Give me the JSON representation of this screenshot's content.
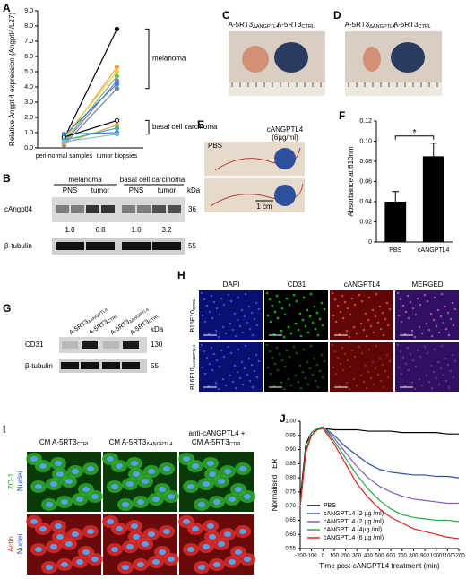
{
  "letters": [
    "A",
    "B",
    "C",
    "D",
    "E",
    "F",
    "G",
    "H",
    "I",
    "J"
  ],
  "B": {
    "groups": [
      "melanoma",
      "basal cell carcinoma"
    ],
    "lanes": [
      "PNS",
      "tumor",
      "PNS",
      "tumor"
    ],
    "unit": "kDa",
    "rows": [
      "cAngptl4",
      "β-tubulin"
    ],
    "markers": [
      "36",
      "55"
    ],
    "ratios": [
      "1.0",
      "6.8",
      "1.0",
      "3.2"
    ]
  },
  "C": {
    "labels": [
      {
        "base": "A-5RT3",
        "sub": "ΔANGPTL4"
      },
      {
        "base": "A-5RT3",
        "sub": "CTRL"
      }
    ]
  },
  "D": {
    "labels": [
      {
        "base": "A-5RT3",
        "sub": "ΔANGPTL4"
      },
      {
        "base": "A-5RT3",
        "sub": "CTRL"
      }
    ]
  },
  "E": {
    "left": "PBS",
    "right": "cANGPTL4",
    "conc": "(6µg/ml)",
    "scale": "1 cm"
  },
  "G": {
    "lanes": [
      {
        "base": "A-5RT3",
        "sub": "ΔANGPTL4"
      },
      {
        "base": "A-5RT3",
        "sub": "CTRL"
      },
      {
        "base": "A-5RT3",
        "sub": "ΔANGPTL4"
      },
      {
        "base": "A-5RT3",
        "sub": "CTRL"
      }
    ],
    "rows": [
      "CD31",
      "β-tubulin"
    ],
    "unit": "kDa",
    "markers": [
      "130",
      "55"
    ]
  },
  "H": {
    "columns": [
      "DAPI",
      "CD31",
      "cANGPTL4",
      "MERGED"
    ],
    "rows": [
      {
        "base": "B16F10",
        "sub": "CTRL"
      },
      {
        "base": "B16F10",
        "sub": "ΔANGPTL4"
      }
    ]
  },
  "I": {
    "columns": [
      {
        "base": "CM A-5RT3",
        "sub": "CTRL"
      },
      {
        "base": "CM A-5RT3",
        "sub": "ΔANGPTL4"
      },
      {
        "pre": "anti-cANGPTL4 +",
        "base": "CM A-5RT3",
        "sub": "CTRL"
      }
    ],
    "rows": [
      [
        "ZO-1",
        "Nuclei"
      ],
      [
        "Actin",
        "Nuclei"
      ]
    ]
  },
  "chart_data": [
    {
      "type": "line",
      "markers": true,
      "ylabel": "Relative Angptl4 expression (Angptl4/L27)",
      "categories": [
        "peri-normal samples",
        "tumor biopsies"
      ],
      "ylim": [
        0,
        9
      ],
      "yticks": [
        {
          "value": 0,
          "label": "0.0"
        },
        {
          "value": 1,
          "label": "1.0"
        },
        {
          "value": 2,
          "label": "2.0"
        },
        {
          "value": 3,
          "label": "3.0"
        },
        {
          "value": 4,
          "label": "4.0"
        },
        {
          "value": 5,
          "label": "5.0"
        },
        {
          "value": 6,
          "label": "6.0"
        },
        {
          "value": 7,
          "label": "7.0"
        },
        {
          "value": 8,
          "label": "8.0"
        },
        {
          "value": 9,
          "label": "9.0"
        }
      ],
      "annotations": [
        "melanoma",
        "basal cell carcinoma"
      ],
      "series": [
        {
          "color": "#000000",
          "values": [
            0.6,
            7.8
          ]
        },
        {
          "color": "#f4a340",
          "values": [
            0.5,
            5.3
          ]
        },
        {
          "color": "#e8d040",
          "values": [
            0.7,
            5.0
          ]
        },
        {
          "color": "#6cc060",
          "values": [
            0.4,
            4.7
          ]
        },
        {
          "color": "#9070c8",
          "values": [
            0.3,
            4.4
          ]
        },
        {
          "color": "#3a7fd0",
          "values": [
            0.8,
            4.2
          ]
        },
        {
          "color": "#708090",
          "values": [
            0.2,
            3.9
          ]
        },
        {
          "color": "#000000",
          "values": [
            0.7,
            1.8
          ]
        },
        {
          "color": "#f4a340",
          "values": [
            0.3,
            1.5
          ]
        },
        {
          "color": "#40b0b0",
          "values": [
            0.5,
            1.3
          ]
        },
        {
          "color": "#3a7fd0",
          "values": [
            0.9,
            1.0
          ]
        },
        {
          "color": "#80b8e8",
          "values": [
            0.4,
            0.9
          ]
        }
      ]
    },
    {
      "type": "bar",
      "ylabel": "Absorbance at 610nm",
      "categories": [
        "PBS",
        "cANGPTL4"
      ],
      "values": [
        0.04,
        0.085
      ],
      "errors": [
        0.01,
        0.013
      ],
      "color": "#000000",
      "ylim": [
        0,
        0.12
      ],
      "yticks": [
        0,
        0.02,
        0.04,
        0.06,
        0.08,
        {
          "value": 0.1,
          "label": "0.10"
        },
        0.12
      ],
      "annotations": [
        "*"
      ]
    },
    {
      "type": "line",
      "xlabel": "Time post-cANGPTL4 treatment (min)",
      "ylabel": "Normalised TER",
      "legend": "lower left",
      "x": [
        -200,
        -150,
        -100,
        -50,
        0,
        100,
        200,
        300,
        400,
        500,
        600,
        700,
        800,
        900,
        1000,
        1100,
        1200
      ],
      "xlim": [
        -200,
        1200
      ],
      "xticks": [
        -200,
        -100,
        0,
        100,
        200,
        300,
        400,
        500,
        600,
        700,
        800,
        900,
        1000,
        1100,
        1200
      ],
      "ylim": [
        0.55,
        1.0
      ],
      "yticks": [
        0.55,
        {
          "value": 0.6,
          "label": "0.60"
        },
        0.65,
        {
          "value": 0.7,
          "label": "0.70"
        },
        0.75,
        {
          "value": 0.8,
          "label": "0.80"
        },
        0.85,
        {
          "value": 0.9,
          "label": "0.90"
        },
        0.95,
        {
          "value": 1.0,
          "label": "1.00"
        }
      ],
      "series": [
        {
          "name": "PBS",
          "color": "#000000",
          "values": [
            0.72,
            0.92,
            0.96,
            0.97,
            0.975,
            0.97,
            0.97,
            0.97,
            0.965,
            0.965,
            0.965,
            0.96,
            0.96,
            0.96,
            0.96,
            0.955,
            0.955
          ]
        },
        {
          "name": "cANGPTL4 (2 µg /ml)",
          "color": "#2c4f9e",
          "values": [
            0.7,
            0.9,
            0.96,
            0.975,
            0.98,
            0.95,
            0.91,
            0.88,
            0.85,
            0.83,
            0.82,
            0.815,
            0.81,
            0.81,
            0.805,
            0.805,
            0.8
          ]
        },
        {
          "name": "cANGPTL4 (2 µg /ml)",
          "color": "#8a5cc0",
          "values": [
            0.7,
            0.9,
            0.96,
            0.975,
            0.98,
            0.94,
            0.89,
            0.84,
            0.8,
            0.77,
            0.75,
            0.735,
            0.725,
            0.72,
            0.715,
            0.71,
            0.71
          ]
        },
        {
          "name": "cANGPTL4 (4µg /ml)",
          "color": "#2aa84a",
          "values": [
            0.7,
            0.9,
            0.96,
            0.975,
            0.98,
            0.93,
            0.87,
            0.81,
            0.76,
            0.72,
            0.69,
            0.67,
            0.66,
            0.655,
            0.65,
            0.65,
            0.645
          ]
        },
        {
          "name": "cANGPTL4 (6 µg /ml)",
          "color": "#e02020",
          "values": [
            0.7,
            0.89,
            0.95,
            0.97,
            0.975,
            0.92,
            0.85,
            0.78,
            0.73,
            0.69,
            0.66,
            0.64,
            0.62,
            0.61,
            0.6,
            0.59,
            0.585
          ]
        }
      ]
    }
  ]
}
